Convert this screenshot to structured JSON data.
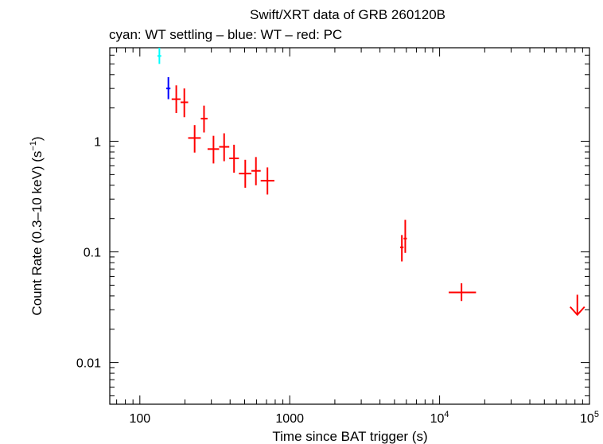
{
  "chart_data": {
    "type": "scatter",
    "title": "Swift/XRT data of GRB 260120B",
    "subtitle": "cyan: WT settling – blue: WT – red: PC",
    "xlabel": "Time since BAT trigger (s)",
    "ylabel": "Count Rate (0.3–10 keV) (s",
    "ylabel_sup": "−1",
    "ylabel_end": ")",
    "x_scale": "log",
    "y_scale": "log",
    "xlim": [
      63,
      100000
    ],
    "ylim": [
      0.0042,
      7
    ],
    "x_ticks": [
      {
        "value": 100,
        "label": "100"
      },
      {
        "value": 1000,
        "label": "1000"
      },
      {
        "value": 10000,
        "base": "10",
        "exp": "4"
      },
      {
        "value": 100000,
        "base": "10",
        "exp": "5"
      }
    ],
    "y_ticks": [
      {
        "value": 0.01,
        "label": "0.01"
      },
      {
        "value": 0.1,
        "label": "0.1"
      },
      {
        "value": 1,
        "label": "1"
      }
    ],
    "grid": false,
    "series": [
      {
        "name": "WT settling",
        "color": "#00ffff",
        "points": [
          {
            "x": 135,
            "y": 5.9,
            "xlo": 131,
            "xhi": 139,
            "ylo": 5.0,
            "yhi": 7.0
          }
        ]
      },
      {
        "name": "WT",
        "color": "#0000ff",
        "points": [
          {
            "x": 155,
            "y": 3.0,
            "xlo": 150,
            "xhi": 160,
            "ylo": 2.4,
            "yhi": 3.8
          }
        ]
      },
      {
        "name": "PC",
        "color": "#ff0000",
        "points": [
          {
            "x": 175,
            "y": 2.4,
            "xlo": 163,
            "xhi": 187,
            "ylo": 1.8,
            "yhi": 3.2
          },
          {
            "x": 198,
            "y": 2.25,
            "xlo": 187,
            "xhi": 210,
            "ylo": 1.65,
            "yhi": 3.0
          },
          {
            "x": 232,
            "y": 1.07,
            "xlo": 210,
            "xhi": 255,
            "ylo": 0.79,
            "yhi": 1.4
          },
          {
            "x": 268,
            "y": 1.6,
            "xlo": 255,
            "xhi": 283,
            "ylo": 1.2,
            "yhi": 2.1
          },
          {
            "x": 310,
            "y": 0.85,
            "xlo": 283,
            "xhi": 338,
            "ylo": 0.63,
            "yhi": 1.12
          },
          {
            "x": 365,
            "y": 0.89,
            "xlo": 338,
            "xhi": 395,
            "ylo": 0.66,
            "yhi": 1.18
          },
          {
            "x": 425,
            "y": 0.7,
            "xlo": 395,
            "xhi": 458,
            "ylo": 0.52,
            "yhi": 0.93
          },
          {
            "x": 505,
            "y": 0.51,
            "xlo": 458,
            "xhi": 555,
            "ylo": 0.38,
            "yhi": 0.68
          },
          {
            "x": 595,
            "y": 0.54,
            "xlo": 555,
            "xhi": 640,
            "ylo": 0.4,
            "yhi": 0.72
          },
          {
            "x": 710,
            "y": 0.44,
            "xlo": 640,
            "xhi": 790,
            "ylo": 0.33,
            "yhi": 0.58
          },
          {
            "x": 5600,
            "y": 0.11,
            "xlo": 5450,
            "xhi": 5750,
            "ylo": 0.082,
            "yhi": 0.142
          },
          {
            "x": 5900,
            "y": 0.132,
            "xlo": 5750,
            "xhi": 6050,
            "ylo": 0.098,
            "yhi": 0.195
          },
          {
            "x": 14000,
            "y": 0.043,
            "xlo": 11500,
            "xhi": 17500,
            "ylo": 0.036,
            "yhi": 0.052
          },
          {
            "x": 83000,
            "y": 0.027,
            "xlo": 80000,
            "xhi": 86000,
            "ylo": 0.027,
            "yhi": 0.041,
            "upper_limit": true
          }
        ]
      }
    ]
  }
}
